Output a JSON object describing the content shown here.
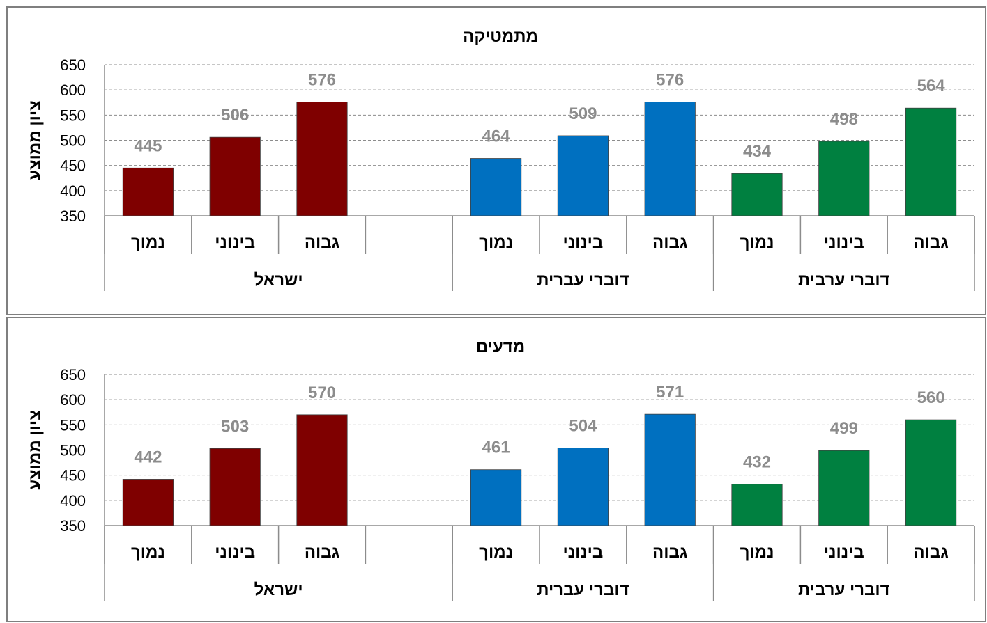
{
  "chart_data": [
    {
      "type": "bar",
      "title": "מתמטיקה",
      "ylabel": "ציון ממוצע",
      "ylim": [
        350,
        650
      ],
      "yticks": [
        350,
        400,
        450,
        500,
        550,
        600,
        650
      ],
      "grid": true,
      "groups": [
        {
          "name": "ישראל",
          "color": "#7f0000",
          "bars": [
            {
              "category": "נמוך",
              "value": 445
            },
            {
              "category": "בינוני",
              "value": 506
            },
            {
              "category": "גבוה",
              "value": 576
            },
            {
              "category": "",
              "value": null
            }
          ]
        },
        {
          "name": "דוברי עברית",
          "color": "#0070c0",
          "bars": [
            {
              "category": "נמוך",
              "value": 464
            },
            {
              "category": "בינוני",
              "value": 509
            },
            {
              "category": "גבוה",
              "value": 576
            }
          ]
        },
        {
          "name": "דוברי ערבית",
          "color": "#008040",
          "bars": [
            {
              "category": "נמוך",
              "value": 434
            },
            {
              "category": "בינוני",
              "value": 498
            },
            {
              "category": "גבוה",
              "value": 564
            }
          ]
        }
      ]
    },
    {
      "type": "bar",
      "title": "מדעים",
      "ylabel": "ציון ממוצע",
      "ylim": [
        350,
        650
      ],
      "yticks": [
        350,
        400,
        450,
        500,
        550,
        600,
        650
      ],
      "grid": true,
      "groups": [
        {
          "name": "ישראל",
          "color": "#7f0000",
          "bars": [
            {
              "category": "נמוך",
              "value": 442
            },
            {
              "category": "בינוני",
              "value": 503
            },
            {
              "category": "גבוה",
              "value": 570
            },
            {
              "category": "",
              "value": null
            }
          ]
        },
        {
          "name": "דוברי עברית",
          "color": "#0070c0",
          "bars": [
            {
              "category": "נמוך",
              "value": 461
            },
            {
              "category": "בינוני",
              "value": 504
            },
            {
              "category": "גבוה",
              "value": 571
            }
          ]
        },
        {
          "name": "דוברי ערבית",
          "color": "#008040",
          "bars": [
            {
              "category": "נמוך",
              "value": 432
            },
            {
              "category": "בינוני",
              "value": 499
            },
            {
              "category": "גבוה",
              "value": 560
            }
          ]
        }
      ]
    }
  ]
}
